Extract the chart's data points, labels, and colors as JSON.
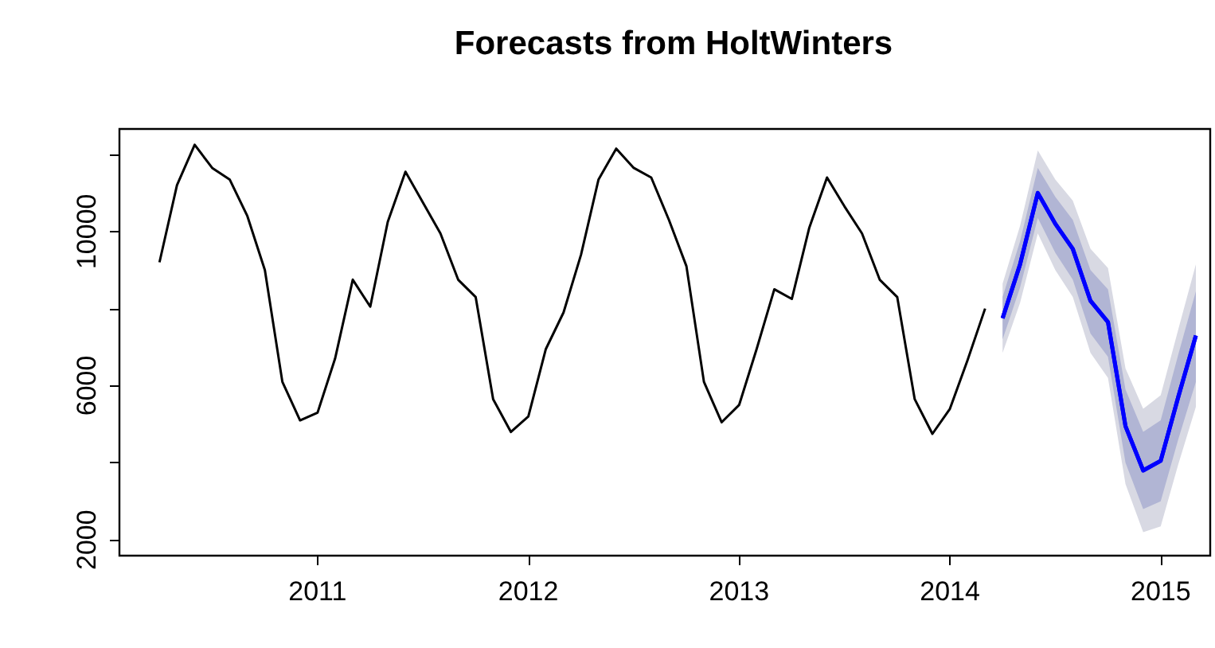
{
  "chart_data": {
    "type": "line",
    "title": "Forecasts from HoltWinters",
    "xlim": [
      2010.06,
      2015.235
    ],
    "xticks": [
      2011,
      2012,
      2013,
      2014,
      2015
    ],
    "ylim": [
      1590,
      12660
    ],
    "yticks": [
      {
        "value": 2000,
        "label": "2000"
      },
      {
        "value": 4000,
        "label": null
      },
      {
        "value": 6000,
        "label": "6000"
      },
      {
        "value": 8000,
        "label": null
      },
      {
        "value": 10000,
        "label": "10000"
      },
      {
        "value": 12000,
        "label": null
      }
    ],
    "grid": false,
    "marker": "none",
    "line_style": "solid",
    "series": [
      {
        "color": "#000000",
        "x": [
          2010.25,
          2010.333,
          2010.417,
          2010.5,
          2010.583,
          2010.667,
          2010.75,
          2010.833,
          2010.917,
          2011.0,
          2011.083,
          2011.167,
          2011.25,
          2011.333,
          2011.417,
          2011.5,
          2011.583,
          2011.667,
          2011.75,
          2011.833,
          2011.917,
          2012.0,
          2012.083,
          2012.167,
          2012.25,
          2012.333,
          2012.417,
          2012.5,
          2012.583,
          2012.667,
          2012.75,
          2012.833,
          2012.917,
          2013.0,
          2013.083,
          2013.167,
          2013.25,
          2013.333,
          2013.417,
          2013.5,
          2013.583,
          2013.667,
          2013.75,
          2013.833,
          2013.917,
          2014.0,
          2014.083,
          2014.167
        ],
        "values": [
          9200,
          11200,
          12250,
          11650,
          11350,
          10400,
          9000,
          6100,
          5100,
          5300,
          6700,
          8750,
          8050,
          10250,
          11550,
          10750,
          9950,
          8750,
          8300,
          5650,
          4800,
          5200,
          6950,
          7900,
          9400,
          11350,
          12150,
          11650,
          11400,
          10300,
          9100,
          6100,
          5050,
          5500,
          6950,
          8500,
          8250,
          10100,
          11400,
          10650,
          9950,
          8750,
          8300,
          5650,
          4750,
          5400,
          6650,
          8000
        ]
      },
      {
        "color": "#0000ff",
        "x": [
          2014.25,
          2014.333,
          2014.417,
          2014.5,
          2014.583,
          2014.667,
          2014.75,
          2014.833,
          2014.917,
          2015.0,
          2015.083,
          2015.167
        ],
        "values": [
          7750,
          9150,
          11000,
          10200,
          9550,
          8200,
          7650,
          4950,
          3800,
          4050,
          5700,
          7300
        ],
        "lower": [
          6850,
          8150,
          9950,
          9000,
          8300,
          6850,
          6200,
          3450,
          2200,
          2350,
          3950,
          5450
        ],
        "upper": [
          8650,
          10150,
          12100,
          11350,
          10800,
          9550,
          9050,
          6450,
          5400,
          5750,
          7450,
          9150
        ]
      },
      {
        "color": "#0000ff",
        "x": [
          2014.25,
          2014.333,
          2014.417,
          2014.5,
          2014.583,
          2014.667,
          2014.75,
          2014.833,
          2014.917,
          2015.0,
          2015.083,
          2015.167
        ],
        "values": [
          7750,
          9150,
          11000,
          10200,
          9550,
          8200,
          7650,
          4950,
          3800,
          4050,
          5700,
          7300
        ],
        "lower": [
          7200,
          8550,
          10350,
          9450,
          8750,
          7350,
          6750,
          4000,
          2800,
          3000,
          4600,
          6100
        ],
        "upper": [
          8300,
          9750,
          11650,
          10900,
          10300,
          9000,
          8500,
          5900,
          4800,
          5100,
          6800,
          8450
        ]
      }
    ]
  }
}
